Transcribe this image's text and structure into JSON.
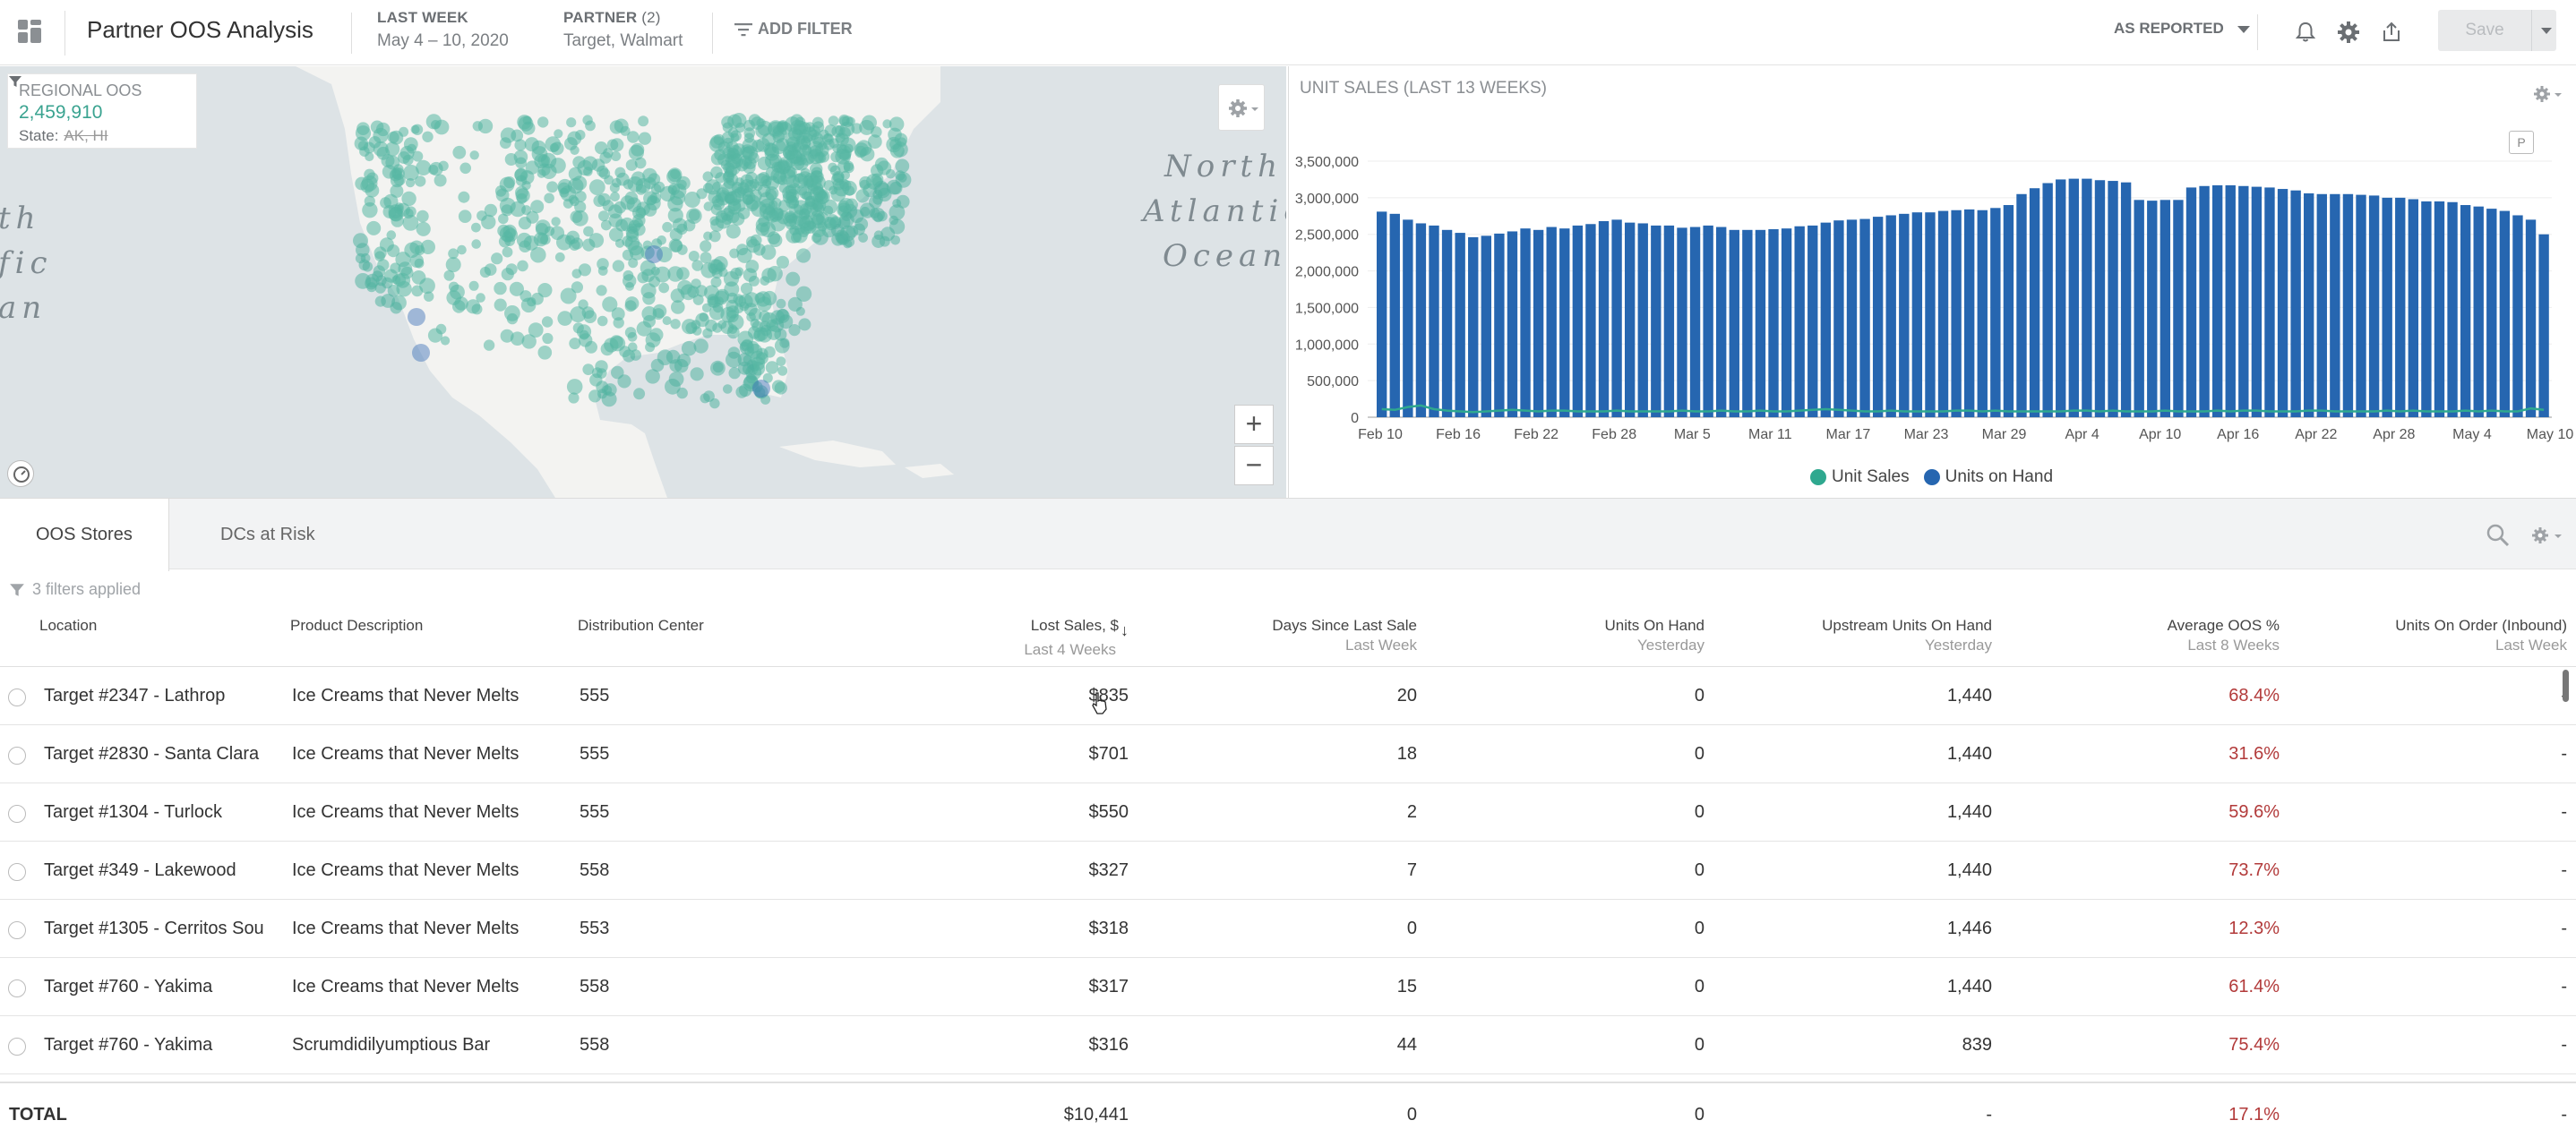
{
  "header": {
    "title": "Partner OOS Analysis",
    "date": {
      "label": "LAST WEEK",
      "value": "May 4 – 10, 2020"
    },
    "partner": {
      "label": "PARTNER",
      "count": "(2)",
      "value": "Target, Walmart"
    },
    "add_filter": "ADD FILTER",
    "as_reported": "AS REPORTED",
    "save_label": "Save"
  },
  "map": {
    "legend_title": "REGIONAL OOS",
    "legend_value": "2,459,910",
    "filter_label": "State:",
    "filter_value": "AK, HI",
    "ocean_left": [
      "th",
      "fic",
      "an"
    ],
    "ocean_right": [
      "North",
      "Atlantic",
      "Ocean"
    ],
    "zoom_in": "+",
    "zoom_out": "−",
    "colors": {
      "dot": "#2fa88f",
      "water": "#dde3e6",
      "land": "#f3f3f1"
    }
  },
  "chart": {
    "title": "UNIT SALES (LAST 13 WEEKS)",
    "badge": "P",
    "legend": [
      {
        "label": "Unit Sales",
        "color": "#2fa88f"
      },
      {
        "label": "Units on Hand",
        "color": "#2666b0"
      }
    ]
  },
  "chart_data": {
    "type": "bar",
    "title": "UNIT SALES (LAST 13 WEEKS)",
    "y_ticks": [
      "3,500,000",
      "3,000,000",
      "2,500,000",
      "2,000,000",
      "1,500,000",
      "1,000,000",
      "500,000",
      "0"
    ],
    "ylim": [
      0,
      3500000
    ],
    "x_ticks": [
      "Feb 10",
      "Feb 16",
      "Feb 22",
      "Feb 28",
      "Mar 5",
      "Mar 11",
      "Mar 17",
      "Mar 23",
      "Mar 29",
      "Apr 4",
      "Apr 10",
      "Apr 16",
      "Apr 22",
      "Apr 28",
      "May 4",
      "May 10"
    ],
    "series": [
      {
        "name": "Units on Hand",
        "color": "#2666b0",
        "values": [
          2810000,
          2780000,
          2700000,
          2650000,
          2620000,
          2560000,
          2520000,
          2460000,
          2480000,
          2510000,
          2540000,
          2580000,
          2560000,
          2600000,
          2580000,
          2620000,
          2640000,
          2680000,
          2700000,
          2660000,
          2650000,
          2620000,
          2620000,
          2590000,
          2600000,
          2620000,
          2600000,
          2560000,
          2560000,
          2560000,
          2570000,
          2580000,
          2610000,
          2620000,
          2660000,
          2690000,
          2700000,
          2710000,
          2740000,
          2760000,
          2780000,
          2800000,
          2800000,
          2820000,
          2830000,
          2840000,
          2830000,
          2860000,
          2900000,
          3050000,
          3130000,
          3200000,
          3250000,
          3260000,
          3260000,
          3240000,
          3230000,
          3210000,
          2970000,
          2960000,
          2970000,
          2970000,
          3140000,
          3160000,
          3170000,
          3170000,
          3160000,
          3150000,
          3140000,
          3120000,
          3100000,
          3060000,
          3050000,
          3050000,
          3050000,
          3040000,
          3030000,
          3000000,
          3000000,
          2980000,
          2950000,
          2950000,
          2940000,
          2900000,
          2880000,
          2850000,
          2820000,
          2760000,
          2700000,
          2500000
        ]
      },
      {
        "name": "Unit Sales",
        "color": "#2fa88f",
        "values": [
          110000,
          100000,
          140000,
          160000,
          110000,
          90000,
          80000,
          70000,
          80000,
          90000,
          100000,
          90000,
          80000,
          90000,
          90000,
          80000,
          80000,
          80000,
          90000,
          80000,
          80000,
          80000,
          80000,
          90000,
          80000,
          80000,
          90000,
          80000,
          80000,
          90000,
          80000,
          80000,
          90000,
          100000,
          110000,
          100000,
          90000,
          80000,
          80000,
          90000,
          80000,
          80000,
          80000,
          80000,
          90000,
          90000,
          80000,
          90000,
          80000,
          80000,
          80000,
          80000,
          80000,
          90000,
          90000,
          80000,
          90000,
          80000,
          80000,
          80000,
          90000,
          80000,
          80000,
          80000,
          90000,
          80000,
          90000,
          90000,
          80000,
          80000,
          80000,
          90000,
          90000,
          80000,
          80000,
          80000,
          80000,
          90000,
          80000,
          90000,
          80000,
          80000,
          80000,
          90000,
          80000,
          90000,
          80000,
          80000,
          120000,
          100000
        ]
      }
    ]
  },
  "tabs": [
    {
      "label": "OOS Stores"
    },
    {
      "label": "DCs at Risk"
    }
  ],
  "table": {
    "filters_applied": "3 filters applied",
    "columns": [
      {
        "label": "Location",
        "sub": ""
      },
      {
        "label": "Product Description",
        "sub": ""
      },
      {
        "label": "Distribution Center",
        "sub": ""
      },
      {
        "label": "Lost Sales, $",
        "sub": "Last 4 Weeks"
      },
      {
        "label": "Days Since Last Sale",
        "sub": "Last Week"
      },
      {
        "label": "Units On Hand",
        "sub": "Yesterday"
      },
      {
        "label": "Upstream Units On Hand",
        "sub": "Yesterday"
      },
      {
        "label": "Average OOS %",
        "sub": "Last 8 Weeks"
      },
      {
        "label": "Units On Order (Inbound)",
        "sub": "Last Week"
      }
    ],
    "rows": [
      [
        "Target #2347 - Lathrop",
        "Ice Creams that Never Melts",
        "555",
        "$835",
        "20",
        "0",
        "1,440",
        "68.4%",
        "-"
      ],
      [
        "Target #2830 - Santa Clara",
        "Ice Creams that Never Melts",
        "555",
        "$701",
        "18",
        "0",
        "1,440",
        "31.6%",
        "-"
      ],
      [
        "Target #1304 - Turlock",
        "Ice Creams that Never Melts",
        "555",
        "$550",
        "2",
        "0",
        "1,440",
        "59.6%",
        "-"
      ],
      [
        "Target #349 - Lakewood",
        "Ice Creams that Never Melts",
        "558",
        "$327",
        "7",
        "0",
        "1,440",
        "73.7%",
        "-"
      ],
      [
        "Target #1305 - Cerritos Sou",
        "Ice Creams that Never Melts",
        "553",
        "$318",
        "0",
        "0",
        "1,446",
        "12.3%",
        "-"
      ],
      [
        "Target #760 - Yakima",
        "Ice Creams that Never Melts",
        "558",
        "$317",
        "15",
        "0",
        "1,440",
        "61.4%",
        "-"
      ],
      [
        "Target #760 - Yakima",
        "Scrumdidilyumptious Bar",
        "558",
        "$316",
        "44",
        "0",
        "839",
        "75.4%",
        "-"
      ]
    ],
    "total": {
      "label": "TOTAL",
      "lost_sales": "$10,441",
      "days": "0",
      "on_hand": "0",
      "upstream": "-",
      "avg_oos": "17.1%",
      "on_order": "-"
    }
  }
}
